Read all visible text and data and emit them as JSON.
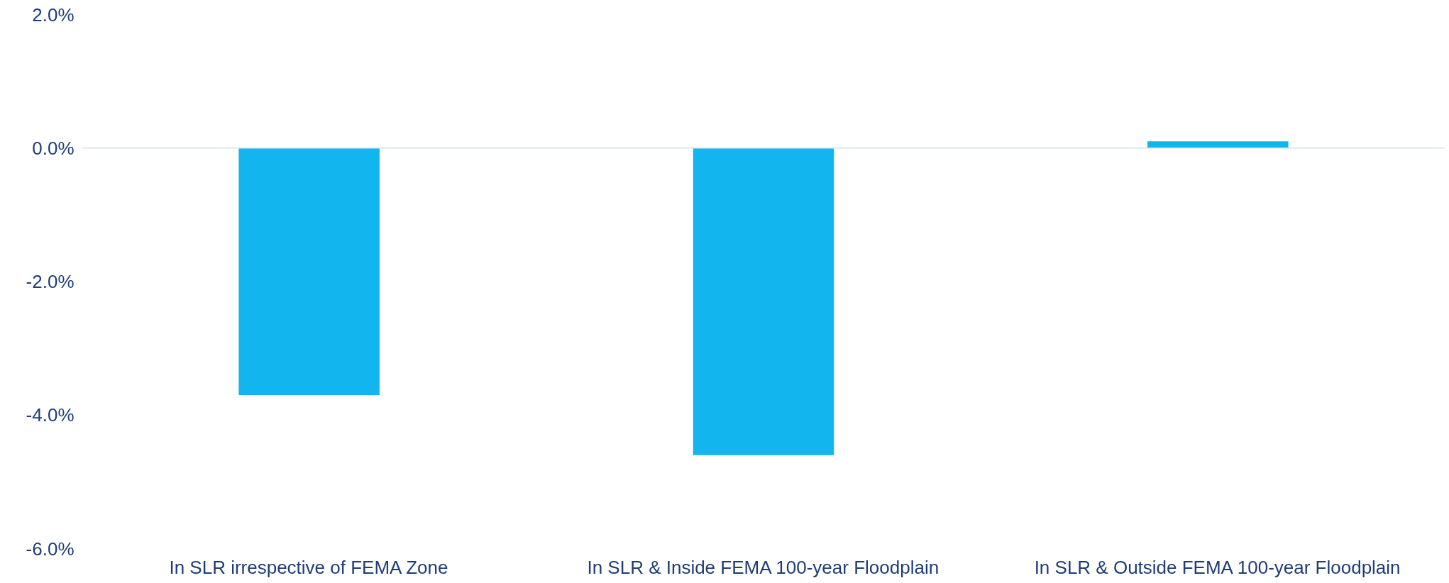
{
  "chart_data": {
    "type": "bar",
    "categories": [
      "In SLR irrespective of FEMA Zone",
      "In SLR & Inside FEMA 100-year Floodplain",
      "In SLR & Outside FEMA 100-year Floodplain"
    ],
    "values": [
      -3.7,
      -4.6,
      0.1
    ],
    "color": "#13b5ee",
    "ylim": [
      -6,
      2
    ],
    "yticks": [
      {
        "value": -6,
        "label": "-6.0%"
      },
      {
        "value": -4,
        "label": "-4.0%"
      },
      {
        "value": -2,
        "label": "-2.0%"
      },
      {
        "value": 0,
        "label": "0.0%"
      },
      {
        "value": 2,
        "label": "2.0%"
      }
    ],
    "ref_lines": [
      {
        "axis": "y",
        "value": 0,
        "color": "#d5e3ec"
      }
    ],
    "grid": false
  }
}
